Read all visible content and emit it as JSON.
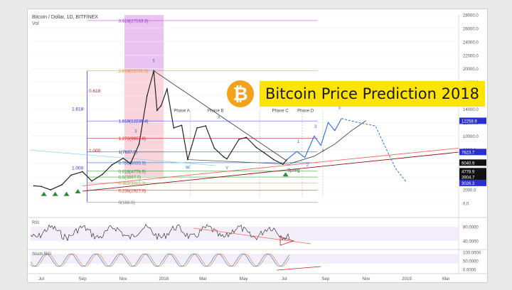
{
  "header": {
    "symbol": "Bitcoin / Dollar, 1D, BITFINEX",
    "volume_label": "Vol"
  },
  "banner": {
    "title": "Bitcoin Price Prediction 2018",
    "coin_color": "#f4a21b",
    "title_background": "#ffe400"
  },
  "chart_data": {
    "type": "line",
    "ylim": [
      0,
      28000
    ],
    "y_ticks": [
      0,
      2000,
      4000,
      6000,
      8000,
      10000,
      12000,
      14000,
      16000,
      18000,
      20000,
      22000,
      24000,
      26000,
      28000
    ],
    "y_tick_labels": [
      "0.0",
      "2000.0",
      "4000.0",
      "6000.0",
      "8000.0",
      "10000.0",
      "12000.0",
      "14000.0",
      "16000.0",
      "18000.0",
      "20000.0",
      "22000.0",
      "24000.0",
      "26000.0",
      "28000.0"
    ],
    "x_tick_labels": [
      "Jul",
      "Sep",
      "Nov",
      "2018",
      "Mar",
      "May",
      "Jul",
      "Sep",
      "Nov",
      "2019",
      "Mar"
    ],
    "price_series": [
      [
        "2017-06-20",
        2600
      ],
      [
        "2017-07-01",
        2500
      ],
      [
        "2017-07-15",
        2000
      ],
      [
        "2017-08-01",
        2750
      ],
      [
        "2017-08-15",
        4200
      ],
      [
        "2017-09-01",
        4700
      ],
      [
        "2017-09-15",
        3300
      ],
      [
        "2017-10-01",
        4300
      ],
      [
        "2017-10-15",
        5700
      ],
      [
        "2017-11-01",
        6700
      ],
      [
        "2017-11-12",
        5900
      ],
      [
        "2017-11-25",
        8800
      ],
      [
        "2017-12-07",
        16000
      ],
      [
        "2017-12-17",
        19700
      ],
      [
        "2017-12-22",
        13800
      ],
      [
        "2017-12-28",
        14500
      ],
      [
        "2018-01-06",
        17000
      ],
      [
        "2018-01-16",
        11200
      ],
      [
        "2018-01-28",
        11600
      ],
      [
        "2018-02-06",
        6500
      ],
      [
        "2018-02-20",
        11200
      ],
      [
        "2018-03-05",
        11500
      ],
      [
        "2018-03-18",
        8200
      ],
      [
        "2018-04-01",
        6900
      ],
      [
        "2018-04-06",
        6600
      ],
      [
        "2018-04-24",
        9500
      ],
      [
        "2018-05-05",
        9800
      ],
      [
        "2018-05-20",
        8300
      ],
      [
        "2018-06-01",
        7500
      ],
      [
        "2018-06-15",
        6500
      ],
      [
        "2018-06-29",
        5800
      ],
      [
        "2018-07-05",
        6500
      ]
    ],
    "projection_blue": [
      [
        "2018-07-05",
        6500
      ],
      [
        "2018-07-20",
        7700
      ],
      [
        "2018-08-01",
        6800
      ],
      [
        "2018-08-15",
        10000
      ],
      [
        "2018-08-25",
        8600
      ],
      [
        "2018-09-05",
        12000
      ],
      [
        "2018-09-15",
        10800
      ],
      [
        "2018-09-25",
        12600
      ]
    ],
    "projection_black": [
      [
        "2018-07-10",
        5900
      ],
      [
        "2018-08-15",
        7000
      ],
      [
        "2018-09-15",
        8800
      ],
      [
        "2018-10-10",
        10800
      ],
      [
        "2018-11-01",
        12300
      ]
    ],
    "projection_dashed": [
      [
        "2018-09-25",
        12600
      ],
      [
        "2018-10-20",
        12000
      ],
      [
        "2018-11-15",
        11500
      ],
      [
        "2018-12-15",
        5200
      ],
      [
        "2019-01-01",
        3100
      ]
    ],
    "fib_levels": [
      {
        "label": "3.618(27163.3)",
        "value": 27163.3,
        "color": "#9b30d0"
      },
      {
        "label": "2.618(19701.3)",
        "value": 19701.3,
        "color": "#ff8a00"
      },
      {
        "label": "1.618(12239.4)",
        "value": 12239.4,
        "color": "#2a2fd4"
      },
      {
        "label": "1.272(9657.6)",
        "value": 9657.6,
        "color": "#cc1f1f"
      },
      {
        "label": "1(7637.9)",
        "value": 7637.9,
        "color": "#1f44cc"
      },
      {
        "label": "0.786(6035.9)",
        "value": 6035.9,
        "color": "#1f6acc"
      },
      {
        "label": "0.618(4778.9)",
        "value": 4778.9,
        "color": "#2f9a2f"
      },
      {
        "label": "0.5(3897.0)",
        "value": 3897.0,
        "color": "#2fa82f"
      },
      {
        "label": "0.382(3015.3)",
        "value": 3015.3,
        "color": "#a7a72f"
      },
      {
        "label": "0.236(1927.0)",
        "value": 1927.0,
        "color": "#cc3a1f"
      },
      {
        "label": "0(166.0)",
        "value": 166.0,
        "color": "#777777"
      }
    ],
    "ratio_labels": [
      "1.618",
      "0.618",
      "1.000",
      "1.000"
    ],
    "wave_labels": [
      "5",
      "3",
      "W",
      "Y",
      "X",
      "1",
      "2",
      "3",
      "4",
      "5",
      "Phase A",
      "Phase B",
      "Phase C",
      "Phase D",
      "Spring"
    ],
    "price_axis_badges": [
      {
        "label": "12258.9",
        "value": 12258.9,
        "color": "#2a2fd4"
      },
      {
        "label": "7623.7",
        "value": 7623.7,
        "color": "#2a2fd4"
      },
      {
        "label": "6040.9",
        "value": 6040.9,
        "color": "#111111"
      },
      {
        "label": "4778.9",
        "value": 4778.9,
        "color": "#111111"
      },
      {
        "label": "3904.7",
        "value": 3904.7,
        "color": "#111111"
      },
      {
        "label": "3026.3",
        "value": 3026.3,
        "color": "#2a2fd4"
      }
    ],
    "rsi": {
      "label": "RSI",
      "ticks": [
        "80.0000",
        "40.0000"
      ]
    },
    "stoch_rsi": {
      "label": "Stoch RSI",
      "ticks": [
        "100.0000",
        "50.0000",
        "0.0000"
      ]
    }
  }
}
